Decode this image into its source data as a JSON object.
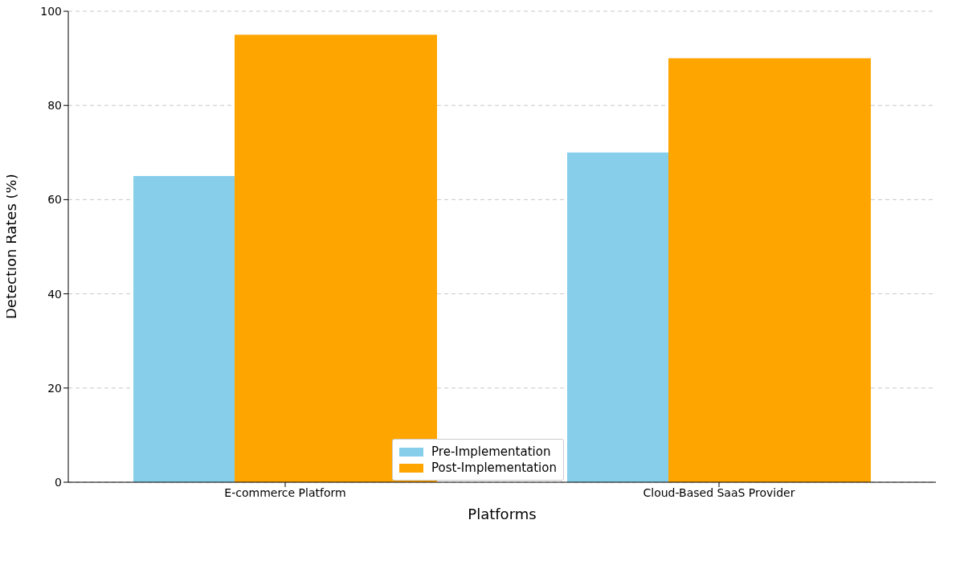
{
  "chart_data": {
    "type": "bar",
    "xlabel": "Platforms",
    "ylabel": "Detection Rates (%)",
    "categories": [
      "E-commerce Platform",
      "Cloud-Based SaaS Provider"
    ],
    "series": [
      {
        "name": "Pre-Implementation",
        "color": "#87ceeb",
        "values": [
          65,
          70
        ]
      },
      {
        "name": "Post-Implementation",
        "color": "#ffa500",
        "values": [
          95,
          90
        ]
      }
    ],
    "ylim": [
      0,
      100
    ],
    "yticks": [
      0,
      20,
      40,
      60,
      80,
      100
    ],
    "grid": "y",
    "legend": "bottom"
  }
}
